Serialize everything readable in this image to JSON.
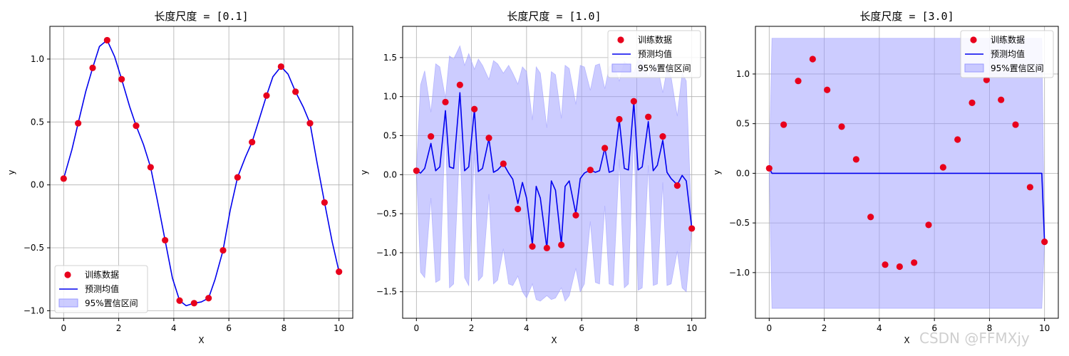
{
  "chart_data": [
    {
      "type": "line",
      "title": "长度尺度 = [0.1]",
      "xlabel": "X",
      "ylabel": "y",
      "xlim": [
        -0.5,
        10.5
      ],
      "ylim": [
        -1.06,
        1.26
      ],
      "xticks": [
        0,
        2,
        4,
        6,
        8,
        10
      ],
      "yticks": [
        -1.0,
        -0.5,
        0.0,
        0.5,
        1.0
      ],
      "grid": true,
      "legend_position": "lower-left",
      "legend": [
        "训练数据",
        "预测均值",
        "95%置信区间"
      ],
      "train_x": [
        0,
        0.526,
        1.053,
        1.579,
        2.105,
        2.632,
        3.158,
        3.684,
        4.211,
        4.737,
        5.263,
        5.789,
        6.316,
        6.842,
        7.368,
        7.895,
        8.421,
        8.947,
        9.474,
        10
      ],
      "train_y": [
        0.05,
        0.49,
        0.93,
        1.15,
        0.84,
        0.47,
        0.14,
        -0.44,
        -0.92,
        -0.94,
        -0.9,
        -0.52,
        0.06,
        0.34,
        0.71,
        0.94,
        0.74,
        0.49,
        -0.14,
        -0.69
      ],
      "mean_x": [
        0,
        0.3,
        0.526,
        0.8,
        1.053,
        1.3,
        1.579,
        1.85,
        2.105,
        2.4,
        2.632,
        2.9,
        3.158,
        3.4,
        3.684,
        3.95,
        4.211,
        4.45,
        4.737,
        5.0,
        5.263,
        5.5,
        5.789,
        6.05,
        6.316,
        6.6,
        6.842,
        7.1,
        7.368,
        7.6,
        7.895,
        8.15,
        8.421,
        8.7,
        8.947,
        9.2,
        9.474,
        9.75,
        10
      ],
      "mean_y": [
        0.05,
        0.28,
        0.49,
        0.74,
        0.93,
        1.1,
        1.15,
        1.02,
        0.84,
        0.62,
        0.47,
        0.32,
        0.14,
        -0.12,
        -0.44,
        -0.74,
        -0.92,
        -0.96,
        -0.94,
        -0.93,
        -0.9,
        -0.75,
        -0.52,
        -0.2,
        0.06,
        0.22,
        0.34,
        0.52,
        0.71,
        0.86,
        0.94,
        0.88,
        0.74,
        0.62,
        0.49,
        0.18,
        -0.14,
        -0.45,
        -0.69
      ],
      "band_upper": [],
      "band_lower": [],
      "colors": {
        "train": "#e8001c",
        "mean": "#0000ee",
        "band": "#9999ff"
      }
    },
    {
      "type": "line",
      "title": "长度尺度 = [1.0]",
      "xlabel": "X",
      "ylabel": "y",
      "xlim": [
        -0.5,
        10.5
      ],
      "ylim": [
        -1.84,
        1.9
      ],
      "xticks": [
        0,
        2,
        4,
        6,
        8,
        10
      ],
      "yticks": [
        -1.5,
        -1.0,
        -0.5,
        0.0,
        0.5,
        1.0,
        1.5
      ],
      "grid": true,
      "legend_position": "top-right",
      "legend": [
        "训练数据",
        "预测均值",
        "95%置信区间"
      ],
      "train_x": [
        0,
        0.526,
        1.053,
        1.579,
        2.105,
        2.632,
        3.158,
        3.684,
        4.211,
        4.737,
        5.263,
        5.789,
        6.316,
        6.842,
        7.368,
        7.895,
        8.421,
        8.947,
        9.474,
        10
      ],
      "train_y": [
        0.05,
        0.49,
        0.93,
        1.15,
        0.84,
        0.47,
        0.14,
        -0.44,
        -0.92,
        -0.94,
        -0.9,
        -0.52,
        0.06,
        0.34,
        0.71,
        0.94,
        0.74,
        0.49,
        -0.14,
        -0.69
      ],
      "mean_x": [
        0,
        0.15,
        0.3,
        0.526,
        0.7,
        0.85,
        1.053,
        1.2,
        1.35,
        1.579,
        1.75,
        1.9,
        2.105,
        2.25,
        2.4,
        2.632,
        2.8,
        2.95,
        3.158,
        3.35,
        3.5,
        3.684,
        3.85,
        4.0,
        4.211,
        4.35,
        4.5,
        4.737,
        4.9,
        5.05,
        5.263,
        5.4,
        5.55,
        5.789,
        5.95,
        6.1,
        6.316,
        6.5,
        6.65,
        6.842,
        7.0,
        7.15,
        7.368,
        7.55,
        7.7,
        7.895,
        8.05,
        8.2,
        8.421,
        8.6,
        8.75,
        8.947,
        9.1,
        9.25,
        9.474,
        9.65,
        9.8,
        10
      ],
      "mean_y": [
        0.05,
        0.02,
        0.08,
        0.4,
        0.05,
        0.1,
        0.82,
        0.1,
        0.08,
        1.05,
        0.05,
        0.1,
        0.83,
        0.04,
        0.08,
        0.46,
        0.03,
        0.06,
        0.14,
        0.02,
        -0.06,
        -0.37,
        -0.1,
        -0.3,
        -0.9,
        -0.15,
        -0.3,
        -0.94,
        -0.08,
        -0.2,
        -0.89,
        -0.15,
        -0.08,
        -0.5,
        -0.05,
        0.02,
        0.06,
        0.03,
        0.05,
        0.34,
        0.03,
        0.05,
        0.7,
        0.08,
        0.06,
        0.93,
        0.06,
        0.1,
        0.68,
        0.05,
        0.12,
        0.44,
        0.03,
        -0.05,
        -0.13,
        -0.01,
        -0.08,
        -0.68
      ],
      "band_upper": [
        0.05,
        1.15,
        1.33,
        0.8,
        1.42,
        1.38,
        0.98,
        1.52,
        1.48,
        1.65,
        1.4,
        1.55,
        1.35,
        1.48,
        1.4,
        1.22,
        1.46,
        1.42,
        1.3,
        1.4,
        1.3,
        1.16,
        1.38,
        1.32,
        0.7,
        1.38,
        1.3,
        0.6,
        1.32,
        1.28,
        0.72,
        1.4,
        1.36,
        0.9,
        1.4,
        1.38,
        1.08,
        1.4,
        1.42,
        1.1,
        1.38,
        1.42,
        1.2,
        1.45,
        1.4,
        1.3,
        1.48,
        1.45,
        1.25,
        1.42,
        1.4,
        1.05,
        1.35,
        1.25,
        0.75,
        1.3,
        1.2,
        -0.68
      ],
      "band_lower": [
        0.05,
        -1.25,
        -1.32,
        -0.3,
        -1.38,
        -1.35,
        0.66,
        -1.45,
        -1.4,
        0.44,
        -1.32,
        -1.42,
        0.3,
        -1.36,
        -1.3,
        -0.25,
        -1.4,
        -1.35,
        -0.95,
        -1.4,
        -1.42,
        -1.3,
        -1.5,
        -1.58,
        -1.4,
        -1.6,
        -1.62,
        -1.55,
        -1.6,
        -1.58,
        -1.45,
        -1.62,
        -1.55,
        -1.2,
        -1.5,
        -1.4,
        -0.6,
        -1.38,
        -1.4,
        -0.4,
        -1.4,
        -1.42,
        0.2,
        -1.45,
        -1.4,
        0.58,
        -1.48,
        -1.45,
        0.12,
        -1.42,
        -1.4,
        -0.1,
        -1.42,
        -1.4,
        -0.98,
        -1.45,
        -1.5,
        -0.7
      ],
      "colors": {
        "train": "#e8001c",
        "mean": "#0000ee",
        "band": "#9999ff"
      }
    },
    {
      "type": "line",
      "title": "长度尺度 = [3.0]",
      "xlabel": "X",
      "ylabel": "y",
      "xlim": [
        -0.5,
        10.5
      ],
      "ylim": [
        -1.46,
        1.48
      ],
      "xticks": [
        0,
        2,
        4,
        6,
        8,
        10
      ],
      "yticks": [
        -1.0,
        -0.5,
        0.0,
        0.5,
        1.0
      ],
      "grid": true,
      "legend_position": "top-right",
      "legend": [
        "训练数据",
        "预测均值",
        "95%置信区间"
      ],
      "train_x": [
        0,
        0.526,
        1.053,
        1.579,
        2.105,
        2.632,
        3.158,
        3.684,
        4.211,
        4.737,
        5.263,
        5.789,
        6.316,
        6.842,
        7.368,
        7.895,
        8.421,
        8.947,
        9.474,
        10
      ],
      "train_y": [
        0.05,
        0.49,
        0.93,
        1.15,
        0.84,
        0.47,
        0.14,
        -0.44,
        -0.92,
        -0.94,
        -0.9,
        -0.52,
        0.06,
        0.34,
        0.71,
        0.94,
        0.74,
        0.49,
        -0.14,
        -0.69
      ],
      "mean_x": [
        0,
        0.1,
        9.9,
        10
      ],
      "mean_y": [
        0.05,
        0.0,
        0.0,
        -0.69
      ],
      "band_upper": [
        0.05,
        1.36,
        1.36,
        -0.69
      ],
      "band_lower": [
        0.05,
        -1.36,
        -1.36,
        -0.69
      ],
      "colors": {
        "train": "#e8001c",
        "mean": "#0000ee",
        "band": "#9999ff"
      }
    }
  ],
  "watermark": "CSDN @FFMXjy"
}
